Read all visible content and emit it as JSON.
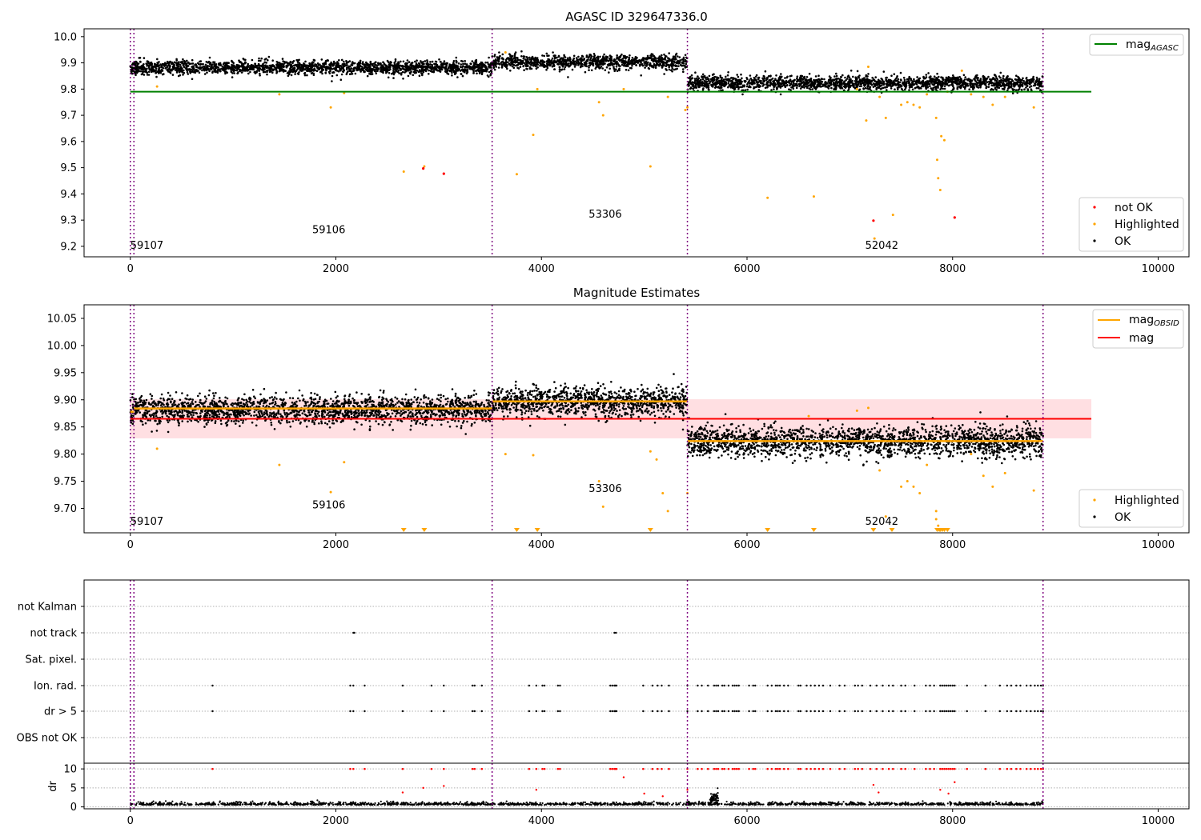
{
  "chart_data": [
    {
      "type": "scatter",
      "title": "AGASC ID 329647336.0",
      "xlabel": "",
      "ylabel": "",
      "xlim": [
        -450,
        10300
      ],
      "ylim": [
        9.16,
        10.03
      ],
      "xticks": [
        0,
        2000,
        4000,
        6000,
        8000,
        10000
      ],
      "xtick_labels": [
        "0",
        "2000",
        "4000",
        "6000",
        "8000",
        "10000"
      ],
      "yticks": [
        9.2,
        9.3,
        9.4,
        9.5,
        9.6,
        9.7,
        9.8,
        9.9,
        10.0
      ],
      "ytick_labels": [
        "9.2",
        "9.3",
        "9.4",
        "9.5",
        "9.6",
        "9.7",
        "9.8",
        "9.9",
        "10.0"
      ],
      "obsid_boundaries": [
        0,
        35,
        3520,
        5420,
        8880
      ],
      "obsid_labels": [
        {
          "text": "59107",
          "x": 0,
          "y": 9.19
        },
        {
          "text": "59106",
          "x": 1770,
          "y": 9.25
        },
        {
          "text": "53306",
          "x": 4460,
          "y": 9.31
        },
        {
          "text": "52042",
          "x": 7150,
          "y": 9.19
        }
      ],
      "reference_lines": [
        {
          "name": "mag_AGASC",
          "y": 9.79,
          "x_range": [
            0,
            9350
          ],
          "color": "#008000"
        }
      ],
      "segments": [
        {
          "x": [
            0,
            35
          ],
          "center": 9.878,
          "spread": 0.011
        },
        {
          "x": [
            35,
            3520
          ],
          "center": 9.882,
          "spread": 0.013
        },
        {
          "x": [
            3520,
            5420
          ],
          "center": 9.903,
          "spread": 0.014
        },
        {
          "x": [
            5420,
            8880
          ],
          "center": 9.823,
          "spread": 0.014
        }
      ],
      "series_not_ok": {
        "name": "not OK",
        "color": "#ff0000",
        "x": [
          2850,
          3050,
          7230,
          8020
        ],
        "y": [
          9.497,
          9.477,
          9.298,
          9.31
        ]
      },
      "series_highlighted": {
        "name": "Highlighted",
        "color": "#ffa500",
        "x": [
          260,
          1450,
          1950,
          2080,
          2660,
          2860,
          3760,
          3920,
          3960,
          4560,
          4600,
          5060,
          5420,
          5400,
          6200,
          6650,
          7070,
          7160,
          7290,
          7350,
          7420,
          7500,
          7560,
          7620,
          7680,
          7750,
          7840,
          7850,
          7860,
          7880,
          7890,
          7920,
          7950,
          8180,
          8300,
          8390,
          8510,
          8790,
          7180,
          7240,
          8090,
          4800,
          3650,
          5230
        ],
        "y": [
          9.81,
          9.78,
          9.73,
          9.785,
          9.485,
          9.505,
          9.475,
          9.625,
          9.8,
          9.75,
          9.7,
          9.505,
          9.73,
          9.72,
          9.385,
          9.39,
          9.8,
          9.68,
          9.77,
          9.69,
          9.32,
          9.74,
          9.75,
          9.74,
          9.73,
          9.78,
          9.69,
          9.53,
          9.46,
          9.415,
          9.62,
          9.605,
          9.79,
          9.78,
          9.77,
          9.74,
          9.77,
          9.73,
          9.885,
          9.23,
          9.87,
          9.8,
          9.94,
          9.77
        ]
      },
      "series_ok": {
        "name": "OK",
        "color": "#000000"
      },
      "legend_upper": {
        "entries": [
          "mag_AGASC"
        ],
        "position": "upper right"
      },
      "legend_lower": {
        "entries": [
          "not OK",
          "Highlighted",
          "OK"
        ],
        "position": "lower right"
      }
    },
    {
      "type": "scatter",
      "title": "Magnitude Estimates",
      "xlabel": "",
      "ylabel": "",
      "xlim": [
        -450,
        10300
      ],
      "ylim": [
        9.655,
        10.075
      ],
      "xticks": [
        0,
        2000,
        4000,
        6000,
        8000,
        10000
      ],
      "xtick_labels": [
        "0",
        "2000",
        "4000",
        "6000",
        "8000",
        "10000"
      ],
      "yticks": [
        9.7,
        9.75,
        9.8,
        9.85,
        9.9,
        9.95,
        10.0,
        10.05
      ],
      "ytick_labels": [
        "9.70",
        "9.75",
        "9.80",
        "9.85",
        "9.90",
        "9.95",
        "10.00",
        "10.05"
      ],
      "obsid_boundaries": [
        0,
        35,
        3520,
        5420,
        8880
      ],
      "obsid_labels": [
        {
          "text": "59107",
          "x": 0,
          "y": 9.67
        },
        {
          "text": "59106",
          "x": 1770,
          "y": 9.7
        },
        {
          "text": "53306",
          "x": 4460,
          "y": 9.73
        },
        {
          "text": "52042",
          "x": 7150,
          "y": 9.67
        }
      ],
      "mag": {
        "name": "mag",
        "y": 9.865,
        "x_range": [
          0,
          9350
        ],
        "band": [
          9.829,
          9.901
        ],
        "color": "#ff0000",
        "band_color": "#ffdfe2"
      },
      "mag_obsid": {
        "name": "mag_OBSID",
        "color": "#ffa500",
        "steps": [
          {
            "x": [
              0,
              35
            ],
            "y": 9.878
          },
          {
            "x": [
              35,
              3520
            ],
            "y": 9.884
          },
          {
            "x": [
              3520,
              5420
            ],
            "y": 9.897
          },
          {
            "x": [
              5420,
              8880
            ],
            "y": 9.824
          }
        ]
      },
      "segments": [
        {
          "x": [
            0,
            35
          ],
          "center": 9.878,
          "spread": 0.011
        },
        {
          "x": [
            35,
            3520
          ],
          "center": 9.882,
          "spread": 0.013
        },
        {
          "x": [
            3520,
            5420
          ],
          "center": 9.897,
          "spread": 0.014
        },
        {
          "x": [
            5420,
            8880
          ],
          "center": 9.823,
          "spread": 0.014
        }
      ],
      "series_highlighted": {
        "name": "Highlighted",
        "color": "#ffa500",
        "x": [
          260,
          1450,
          1950,
          2080,
          3650,
          3920,
          4560,
          4600,
          5060,
          5120,
          5180,
          5230,
          5420,
          6600,
          7070,
          7180,
          7290,
          7350,
          7500,
          7560,
          7620,
          7680,
          7750,
          7840,
          8180,
          8300,
          8390,
          8510,
          8790,
          7840,
          7860
        ],
        "y": [
          9.81,
          9.78,
          9.73,
          9.785,
          9.8,
          9.798,
          9.75,
          9.703,
          9.805,
          9.79,
          9.728,
          9.695,
          9.728,
          9.87,
          9.88,
          9.885,
          9.77,
          9.685,
          9.74,
          9.75,
          9.74,
          9.728,
          9.78,
          9.695,
          9.8,
          9.76,
          9.74,
          9.765,
          9.733,
          9.68,
          9.668
        ]
      },
      "below_range_markers": {
        "color": "#ffa500",
        "x": [
          2660,
          2860,
          3760,
          3960,
          5060,
          6200,
          6650,
          7230,
          7410,
          7850,
          7870,
          7880,
          7900,
          7920,
          7950
        ]
      },
      "series_ok": {
        "name": "OK",
        "color": "#000000"
      },
      "legend_upper": {
        "entries": [
          "mag_OBSID",
          "mag"
        ],
        "position": "upper right"
      },
      "legend_lower": {
        "entries": [
          "Highlighted",
          "OK"
        ],
        "position": "lower right"
      }
    },
    {
      "type": "scatter",
      "title": "",
      "xlabel": "",
      "ylabel": "",
      "xlim": [
        -450,
        10300
      ],
      "categories": [
        "not Kalman",
        "not track",
        "Sat. pixel.",
        "Ion. rad.",
        "dr > 5",
        "OBS not OK"
      ],
      "obsid_boundaries": [
        0,
        35,
        3520,
        5420,
        8880
      ],
      "flags": {
        "not track": [
          2170,
          2180,
          4710,
          4725
        ],
        "Ion. rad.": [
          800,
          2140,
          2170,
          2280,
          2650,
          2930,
          3050,
          3330,
          3350,
          3420,
          3880,
          3950,
          4010,
          4030,
          4160,
          4180,
          4670,
          4690,
          4710,
          4720,
          4730,
          4990,
          5080,
          5130,
          5170,
          5240,
          5420,
          5520,
          5560,
          5620,
          5680,
          5700,
          5720,
          5760,
          5780,
          5820,
          5860,
          5880,
          5900,
          5920,
          6020,
          6060,
          6080,
          6200,
          6240,
          6280,
          6300,
          6320,
          6360,
          6400,
          6500,
          6520,
          6580,
          6620,
          6660,
          6700,
          6740,
          6810,
          6900,
          6950,
          7050,
          7080,
          7120,
          7200,
          7260,
          7320,
          7380,
          7420,
          7500,
          7540,
          7630,
          7740,
          7780,
          7820,
          7880,
          7900,
          7920,
          7940,
          7960,
          7980,
          8000,
          8020,
          8140,
          8320,
          8460,
          8530,
          8570,
          8620,
          8660,
          8720,
          8760,
          8800,
          8830,
          8860,
          8880
        ],
        "dr > 5": [
          800,
          2140,
          2170,
          2280,
          2650,
          2930,
          3050,
          3330,
          3350,
          3420,
          3880,
          3950,
          4010,
          4030,
          4160,
          4180,
          4670,
          4690,
          4710,
          4720,
          4730,
          4990,
          5080,
          5130,
          5170,
          5240,
          5420,
          5520,
          5560,
          5620,
          5680,
          5700,
          5720,
          5760,
          5780,
          5820,
          5860,
          5880,
          5900,
          5920,
          6020,
          6060,
          6080,
          6200,
          6240,
          6280,
          6300,
          6320,
          6360,
          6400,
          6500,
          6520,
          6580,
          6620,
          6660,
          6700,
          6740,
          6810,
          6900,
          6950,
          7050,
          7080,
          7120,
          7200,
          7260,
          7320,
          7380,
          7420,
          7500,
          7540,
          7630,
          7740,
          7780,
          7820,
          7880,
          7900,
          7920,
          7940,
          7960,
          7980,
          8000,
          8020,
          8140,
          8320,
          8460,
          8530,
          8570,
          8620,
          8660,
          8720,
          8760,
          8800,
          8830,
          8860,
          8880
        ]
      }
    },
    {
      "type": "scatter",
      "title": "",
      "xlabel": "",
      "ylabel": "dr",
      "xlim": [
        -450,
        10300
      ],
      "ylim": [
        -0.5,
        11.5
      ],
      "xticks": [
        0,
        2000,
        4000,
        6000,
        8000,
        10000
      ],
      "xtick_labels": [
        "0",
        "2000",
        "4000",
        "6000",
        "8000",
        "10000"
      ],
      "yticks": [
        0,
        5,
        10
      ],
      "ytick_labels": [
        "0",
        "5",
        "10"
      ],
      "obsid_boundaries": [
        0,
        35,
        3520,
        5420,
        8880
      ],
      "baseline": {
        "center": 0.5,
        "spread": 0.35
      },
      "bump": {
        "x": [
          5640,
          5720
        ],
        "center": 2.2,
        "spread": 0.8
      },
      "series_red": {
        "color": "#ff0000",
        "x": [
          2650,
          2850,
          3050,
          3950,
          4800,
          5000,
          5180,
          5420,
          7230,
          7280,
          7880,
          7960,
          8020
        ],
        "y": [
          3.8,
          5.0,
          5.5,
          4.5,
          7.8,
          3.5,
          2.8,
          4.5,
          5.8,
          3.8,
          4.5,
          3.5,
          6.5
        ]
      },
      "saturated_x": [
        800,
        2140,
        2170,
        2280,
        2650,
        2930,
        3050,
        3330,
        3350,
        3420,
        3880,
        3950,
        4010,
        4030,
        4160,
        4180,
        4670,
        4690,
        4710,
        4720,
        4730,
        4990,
        5080,
        5130,
        5170,
        5240,
        5420,
        5520,
        5560,
        5620,
        5680,
        5700,
        5720,
        5760,
        5780,
        5820,
        5860,
        5880,
        5900,
        5920,
        6020,
        6060,
        6080,
        6200,
        6240,
        6280,
        6300,
        6320,
        6360,
        6400,
        6500,
        6520,
        6580,
        6620,
        6660,
        6700,
        6740,
        6810,
        6900,
        6950,
        7050,
        7080,
        7120,
        7200,
        7260,
        7320,
        7380,
        7420,
        7500,
        7540,
        7630,
        7740,
        7780,
        7820,
        7880,
        7900,
        7920,
        7940,
        7960,
        7980,
        8000,
        8020,
        8140,
        8320,
        8460,
        8530,
        8570,
        8620,
        8660,
        8720,
        8760,
        8800,
        8830,
        8860,
        8880
      ]
    }
  ],
  "colors": {
    "boundary": "#800080",
    "grid": "#b0b0b0",
    "ok": "#000000",
    "highlighted": "#ffa500",
    "not_ok": "#ff0000"
  }
}
